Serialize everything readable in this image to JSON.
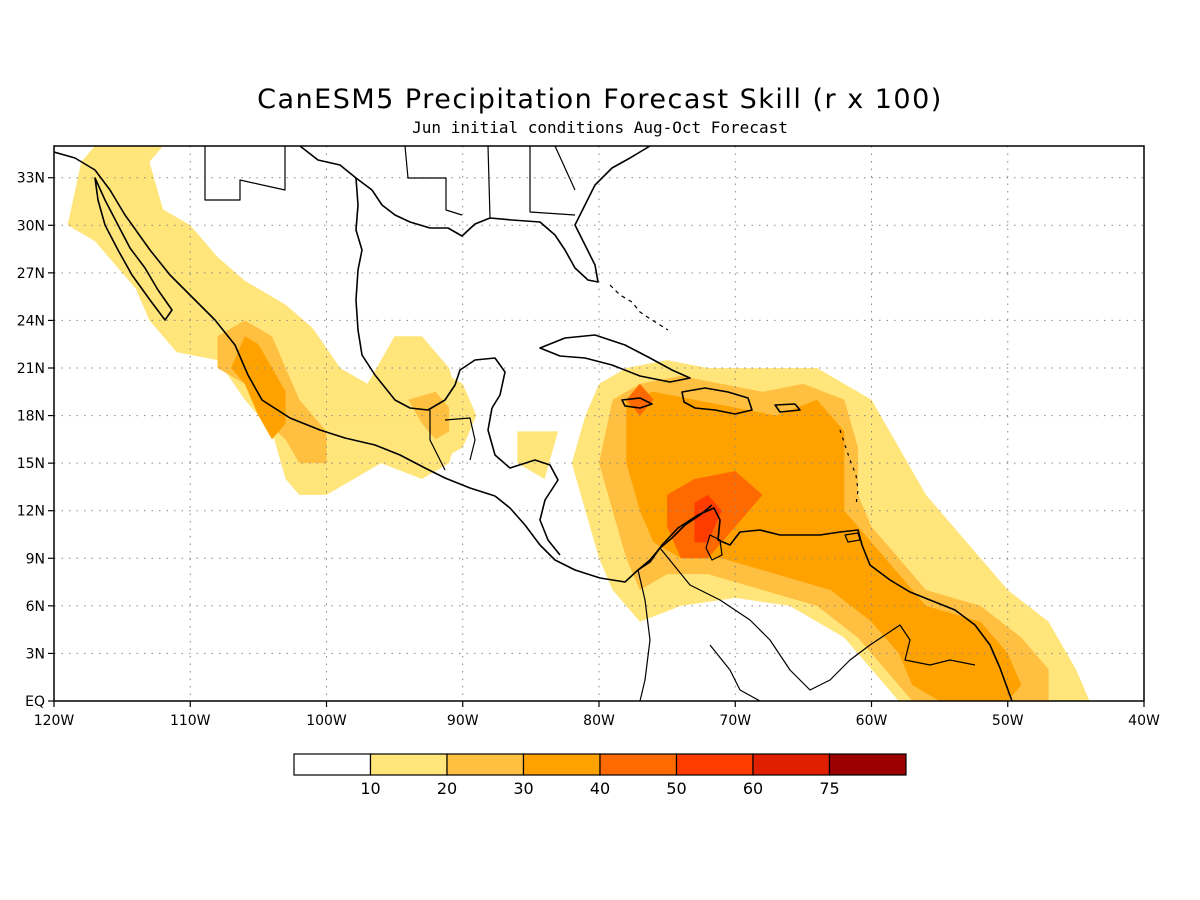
{
  "title": "CanESM5 Precipitation Forecast Skill (r x 100)",
  "subtitle": "Jun initial conditions  Aug-Oct Forecast",
  "chart_data": {
    "type": "heatmap",
    "variable": "precipitation forecast skill (r x 100)",
    "lon_range": [
      -120,
      -40
    ],
    "lat_range": [
      0,
      35
    ],
    "grid": true,
    "lon_ticks": [
      "120W",
      "110W",
      "100W",
      "90W",
      "80W",
      "70W",
      "60W",
      "50W",
      "40W"
    ],
    "lat_ticks": [
      "EQ",
      "3N",
      "6N",
      "9N",
      "12N",
      "15N",
      "18N",
      "21N",
      "24N",
      "27N",
      "30N",
      "33N"
    ],
    "colorbar": {
      "levels": [
        "10",
        "20",
        "30",
        "40",
        "50",
        "60",
        "75"
      ],
      "colors": [
        "#ffffff",
        "#ffe57a",
        "#ffbf40",
        "#ffa200",
        "#ff6a00",
        "#ff3c00",
        "#e01e00",
        "#9c0000"
      ]
    },
    "regions": [
      {
        "level": 1,
        "points": [
          [
            -116,
            28
          ],
          [
            -114,
            26
          ],
          [
            -113,
            24
          ],
          [
            -111,
            22
          ],
          [
            -108,
            21.5
          ],
          [
            -106,
            19
          ],
          [
            -104,
            17
          ],
          [
            -103,
            14
          ],
          [
            -102,
            13
          ],
          [
            -100,
            13
          ],
          [
            -98,
            14
          ],
          [
            -96,
            15
          ],
          [
            -93,
            14
          ],
          [
            -91,
            15
          ],
          [
            -90,
            18
          ],
          [
            -91,
            21
          ],
          [
            -93,
            23
          ],
          [
            -95,
            23
          ],
          [
            -97,
            20
          ],
          [
            -99,
            21
          ],
          [
            -101,
            23.5
          ],
          [
            -103,
            25
          ],
          [
            -106,
            26.5
          ],
          [
            -108,
            28
          ],
          [
            -110,
            30
          ],
          [
            -112,
            31
          ],
          [
            -113,
            34
          ],
          [
            -112,
            35
          ],
          [
            -117,
            35
          ],
          [
            -118,
            34
          ],
          [
            -119,
            30
          ],
          [
            -117,
            29
          ]
        ],
        "fill_index": 1
      },
      {
        "level": 2,
        "points": [
          [
            -108,
            21
          ],
          [
            -106,
            20
          ],
          [
            -105,
            18
          ],
          [
            -103,
            16.5
          ],
          [
            -102,
            15
          ],
          [
            -100,
            15
          ],
          [
            -100,
            17
          ],
          [
            -102,
            19
          ],
          [
            -103,
            21
          ],
          [
            -104,
            23
          ],
          [
            -106,
            24
          ],
          [
            -108,
            23
          ]
        ],
        "fill_index": 2
      },
      {
        "level": 3,
        "points": [
          [
            -107,
            21
          ],
          [
            -106,
            20
          ],
          [
            -105,
            18
          ],
          [
            -104,
            16.5
          ],
          [
            -103,
            17.5
          ],
          [
            -103,
            19.5
          ],
          [
            -104,
            21
          ],
          [
            -105,
            22.5
          ],
          [
            -106,
            23
          ]
        ],
        "fill_index": 3
      },
      {
        "level": 1,
        "points": [
          [
            -95,
            21
          ],
          [
            -94,
            19
          ],
          [
            -93,
            17
          ],
          [
            -92,
            15
          ],
          [
            -90,
            16
          ],
          [
            -89,
            18
          ],
          [
            -90,
            20
          ],
          [
            -92,
            21
          ]
        ],
        "fill_index": 1
      },
      {
        "level": 2,
        "points": [
          [
            -94,
            19
          ],
          [
            -93,
            17.5
          ],
          [
            -92,
            16.5
          ],
          [
            -91,
            17
          ],
          [
            -91,
            18.5
          ],
          [
            -92,
            19.5
          ]
        ],
        "fill_index": 2
      },
      {
        "level": 1,
        "points": [
          [
            -86,
            15
          ],
          [
            -84,
            14
          ],
          [
            -83,
            17
          ],
          [
            -86,
            17
          ]
        ],
        "fill_index": 1
      },
      {
        "level": 1,
        "points": [
          [
            -80,
            20
          ],
          [
            -78,
            21
          ],
          [
            -75,
            21.5
          ],
          [
            -72,
            21
          ],
          [
            -68,
            21
          ],
          [
            -64,
            21
          ],
          [
            -60,
            19
          ],
          [
            -58,
            16
          ],
          [
            -56,
            13
          ],
          [
            -54,
            11
          ],
          [
            -52,
            9
          ],
          [
            -50,
            7
          ],
          [
            -47,
            5
          ],
          [
            -45,
            2
          ],
          [
            -44,
            0
          ],
          [
            -58,
            0
          ],
          [
            -60,
            2
          ],
          [
            -62,
            4
          ],
          [
            -64,
            5
          ],
          [
            -66,
            6
          ],
          [
            -70,
            6.5
          ],
          [
            -74,
            6
          ],
          [
            -77,
            5
          ],
          [
            -79,
            7
          ],
          [
            -80,
            9
          ],
          [
            -81,
            12
          ],
          [
            -82,
            15
          ],
          [
            -81,
            18
          ]
        ],
        "fill_index": 1
      },
      {
        "level": 2,
        "points": [
          [
            -79,
            19
          ],
          [
            -77,
            20
          ],
          [
            -74,
            20.5
          ],
          [
            -71,
            20
          ],
          [
            -68,
            19.5
          ],
          [
            -65,
            20
          ],
          [
            -62,
            19
          ],
          [
            -61,
            16
          ],
          [
            -61,
            13
          ],
          [
            -60,
            11
          ],
          [
            -58,
            9
          ],
          [
            -56,
            7
          ],
          [
            -52,
            6
          ],
          [
            -49,
            4
          ],
          [
            -47,
            2
          ],
          [
            -47,
            0
          ],
          [
            -57,
            0
          ],
          [
            -59,
            2
          ],
          [
            -61,
            4
          ],
          [
            -64,
            6
          ],
          [
            -68,
            7
          ],
          [
            -72,
            8
          ],
          [
            -75,
            8
          ],
          [
            -77,
            7
          ],
          [
            -78,
            9
          ],
          [
            -79,
            12
          ],
          [
            -80,
            15
          ]
        ],
        "fill_index": 2
      },
      {
        "level": 3,
        "points": [
          [
            -78,
            19
          ],
          [
            -76,
            19.5
          ],
          [
            -73,
            19
          ],
          [
            -70,
            18.5
          ],
          [
            -67,
            18
          ],
          [
            -64,
            19
          ],
          [
            -62,
            17
          ],
          [
            -62,
            14
          ],
          [
            -62,
            12
          ],
          [
            -60,
            10
          ],
          [
            -58,
            8
          ],
          [
            -56,
            6
          ],
          [
            -52,
            5
          ],
          [
            -50,
            3
          ],
          [
            -49,
            1
          ],
          [
            -50,
            0
          ],
          [
            -55,
            0
          ],
          [
            -57,
            1
          ],
          [
            -58,
            3
          ],
          [
            -60,
            5
          ],
          [
            -63,
            7
          ],
          [
            -67,
            8
          ],
          [
            -71,
            9
          ],
          [
            -74,
            9
          ],
          [
            -76,
            10
          ],
          [
            -77,
            12
          ],
          [
            -78,
            15
          ]
        ],
        "fill_index": 3
      },
      {
        "level": 4,
        "points": [
          [
            -75,
            13
          ],
          [
            -73,
            14
          ],
          [
            -70,
            14.5
          ],
          [
            -68,
            13
          ],
          [
            -70,
            11
          ],
          [
            -72,
            9
          ],
          [
            -74,
            9
          ],
          [
            -75,
            11
          ]
        ],
        "fill_index": 4
      },
      {
        "level": 5,
        "points": [
          [
            -73,
            12.5
          ],
          [
            -72,
            13
          ],
          [
            -71,
            12
          ],
          [
            -72,
            10
          ],
          [
            -73,
            10
          ]
        ],
        "fill_index": 5
      },
      {
        "level": 4,
        "points": [
          [
            -78,
            19
          ],
          [
            -77,
            20
          ],
          [
            -76,
            19
          ],
          [
            -77,
            18
          ]
        ],
        "fill_index": 4
      }
    ]
  }
}
